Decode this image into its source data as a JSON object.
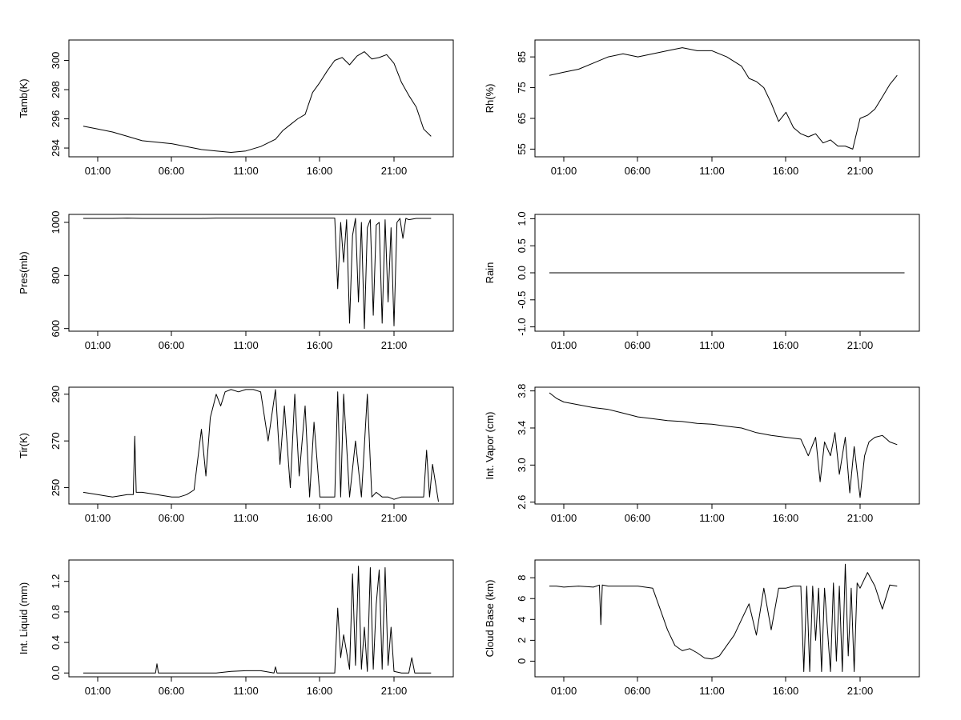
{
  "chart_data": [
    {
      "type": "line",
      "ylabel": "Tamb(K)",
      "x_ticks": [
        "01:00",
        "06:00",
        "11:00",
        "16:00",
        "21:00"
      ],
      "y_ticks": [
        "294",
        "296",
        "298",
        "300"
      ],
      "ylim": [
        293.4,
        301.4
      ],
      "series": [
        {
          "x": [
            0,
            1,
            2,
            3,
            4,
            5,
            6,
            7,
            8,
            9,
            10,
            11,
            12,
            13,
            13.5,
            14,
            14.5,
            15,
            15.5,
            16,
            16.5,
            17,
            17.5,
            18,
            18.5,
            19,
            19.5,
            20,
            20.5,
            21,
            21.5,
            22,
            22.5,
            23,
            23.5
          ],
          "y": [
            295.5,
            295.3,
            295.1,
            294.8,
            294.5,
            294.4,
            294.3,
            294.1,
            293.9,
            293.8,
            293.7,
            293.8,
            294.1,
            294.6,
            295.2,
            295.6,
            296.0,
            296.3,
            297.8,
            298.5,
            299.3,
            300.0,
            300.2,
            299.7,
            300.3,
            300.6,
            300.1,
            300.2,
            300.4,
            299.8,
            298.5,
            297.6,
            296.8,
            295.3,
            294.8
          ]
        }
      ]
    },
    {
      "type": "line",
      "ylabel": "Rh(%)",
      "x_ticks": [
        "01:00",
        "06:00",
        "11:00",
        "16:00",
        "21:00"
      ],
      "y_ticks": [
        "55",
        "65",
        "75",
        "85"
      ],
      "ylim": [
        52.5,
        90.5
      ],
      "series": [
        {
          "x": [
            0,
            1,
            2,
            3,
            4,
            5,
            6,
            7,
            8,
            9,
            10,
            11,
            12,
            13,
            13.5,
            14,
            14.5,
            15,
            15.5,
            16,
            16.5,
            17,
            17.5,
            18,
            18.5,
            19,
            19.5,
            20,
            20.5,
            21,
            21.5,
            22,
            22.5,
            23,
            23.5
          ],
          "y": [
            79,
            80,
            81,
            83,
            85,
            86,
            85,
            86,
            87,
            88,
            87,
            87,
            85,
            82,
            78,
            77,
            75,
            70,
            64,
            67,
            62,
            60,
            59,
            60,
            57,
            58,
            56,
            56,
            55,
            65,
            66,
            68,
            72,
            76,
            79
          ]
        }
      ]
    },
    {
      "type": "line",
      "ylabel": "Pres(mb)",
      "x_ticks": [
        "01:00",
        "06:00",
        "11:00",
        "16:00",
        "21:00"
      ],
      "y_ticks": [
        "600",
        "800",
        "1000"
      ],
      "ylim": [
        590,
        1030
      ],
      "series": [
        {
          "x": [
            0,
            1,
            2,
            3,
            4,
            5,
            6,
            7,
            8,
            9,
            10,
            11,
            12,
            13,
            14,
            15,
            16,
            17,
            17.2,
            17.4,
            17.6,
            17.8,
            18,
            18.2,
            18.4,
            18.6,
            18.8,
            19,
            19.2,
            19.4,
            19.6,
            19.8,
            20,
            20.2,
            20.4,
            20.6,
            20.8,
            21,
            21.2,
            21.4,
            21.6,
            21.8,
            22,
            22.5,
            23,
            23.5
          ],
          "y": [
            1015,
            1015,
            1015,
            1016,
            1015,
            1015,
            1015,
            1015,
            1015,
            1016,
            1016,
            1016,
            1016,
            1016,
            1016,
            1016,
            1016,
            1016,
            750,
            1000,
            850,
            1010,
            620,
            950,
            1015,
            700,
            1000,
            600,
            980,
            1010,
            650,
            990,
            1000,
            620,
            1010,
            700,
            980,
            610,
            1000,
            1015,
            940,
            1015,
            1010,
            1015,
            1015,
            1015
          ]
        }
      ]
    },
    {
      "type": "line",
      "ylabel": "Rain",
      "x_ticks": [
        "01:00",
        "06:00",
        "11:00",
        "16:00",
        "21:00"
      ],
      "y_ticks": [
        "-1.0",
        "-0.5",
        "0.0",
        "0.5",
        "1.0"
      ],
      "ylim": [
        -1.08,
        1.08
      ],
      "series": [
        {
          "x": [
            0,
            24
          ],
          "y": [
            0,
            0
          ]
        }
      ]
    },
    {
      "type": "line",
      "ylabel": "Tir(K)",
      "x_ticks": [
        "01:00",
        "06:00",
        "11:00",
        "16:00",
        "21:00"
      ],
      "y_ticks": [
        "250",
        "270",
        "290"
      ],
      "ylim": [
        243,
        293
      ],
      "series": [
        {
          "x": [
            0,
            1,
            2,
            3,
            3.4,
            3.5,
            3.6,
            4,
            5,
            6,
            6.5,
            7,
            7.5,
            8,
            8.3,
            8.6,
            9,
            9.3,
            9.6,
            10,
            10.5,
            11,
            11.5,
            12,
            12.5,
            13,
            13.3,
            13.6,
            14,
            14.3,
            14.6,
            15,
            15.3,
            15.6,
            16,
            16.5,
            17,
            17.2,
            17.4,
            17.6,
            18,
            18.4,
            18.8,
            19.2,
            19.5,
            19.8,
            20.2,
            20.6,
            21,
            21.5,
            22,
            22.5,
            23,
            23.2,
            23.4,
            23.6,
            24
          ],
          "y": [
            248,
            247,
            246,
            247,
            247,
            272,
            248,
            248,
            247,
            246,
            246,
            247,
            249,
            275,
            255,
            280,
            290,
            285,
            291,
            292,
            291,
            292,
            292,
            291,
            270,
            292,
            260,
            285,
            250,
            290,
            255,
            285,
            246,
            278,
            246,
            246,
            246,
            291,
            246,
            290,
            246,
            270,
            246,
            290,
            246,
            248,
            246,
            246,
            245,
            246,
            246,
            246,
            246,
            266,
            246,
            260,
            244
          ]
        }
      ]
    },
    {
      "type": "line",
      "ylabel": "Int. Vapor (cm)",
      "x_ticks": [
        "01:00",
        "06:00",
        "11:00",
        "16:00",
        "21:00"
      ],
      "y_ticks": [
        "2.6",
        "3.0",
        "3.4",
        "3.8"
      ],
      "ylim": [
        2.58,
        3.84
      ],
      "series": [
        {
          "x": [
            0,
            0.5,
            1,
            2,
            3,
            4,
            5,
            6,
            7,
            8,
            9,
            10,
            11,
            12,
            13,
            14,
            15,
            16,
            17,
            17.5,
            18,
            18.3,
            18.6,
            19,
            19.3,
            19.6,
            20,
            20.3,
            20.6,
            21,
            21.3,
            21.6,
            22,
            22.5,
            23,
            23.5
          ],
          "y": [
            3.78,
            3.72,
            3.68,
            3.65,
            3.62,
            3.6,
            3.56,
            3.52,
            3.5,
            3.48,
            3.47,
            3.45,
            3.44,
            3.42,
            3.4,
            3.35,
            3.32,
            3.3,
            3.28,
            3.1,
            3.3,
            2.82,
            3.25,
            3.1,
            3.35,
            2.9,
            3.3,
            2.7,
            3.2,
            2.65,
            3.1,
            3.25,
            3.3,
            3.32,
            3.25,
            3.22
          ]
        }
      ]
    },
    {
      "type": "line",
      "ylabel": "Int. Liquid (mm)",
      "x_ticks": [
        "01:00",
        "06:00",
        "11:00",
        "16:00",
        "21:00"
      ],
      "y_ticks": [
        "0.0",
        "0.4",
        "0.8",
        "1.2"
      ],
      "ylim": [
        -0.05,
        1.48
      ],
      "series": [
        {
          "x": [
            0,
            1,
            2,
            3,
            4,
            4.9,
            5,
            5.1,
            6,
            7,
            8,
            9,
            10,
            11,
            12,
            12.9,
            13,
            13.1,
            14,
            15,
            16,
            17,
            17.2,
            17.4,
            17.6,
            18,
            18.2,
            18.4,
            18.6,
            18.8,
            19,
            19.2,
            19.4,
            19.6,
            19.8,
            20,
            20.2,
            20.4,
            20.6,
            20.8,
            21,
            21.5,
            22,
            22.2,
            22.4,
            23,
            23.5
          ],
          "y": [
            0,
            0,
            0,
            0,
            0,
            0,
            0.12,
            0,
            0,
            0,
            0,
            0,
            0.02,
            0.03,
            0.03,
            0,
            0.08,
            0,
            0,
            0,
            0,
            0,
            0.85,
            0.2,
            0.5,
            0.05,
            1.3,
            0.1,
            1.4,
            0.05,
            0.6,
            0.02,
            1.38,
            0.05,
            0.9,
            1.35,
            0.05,
            1.38,
            0.1,
            0.6,
            0.02,
            0,
            0,
            0.2,
            0,
            0,
            0
          ]
        }
      ]
    },
    {
      "type": "line",
      "ylabel": "Cloud Base (km)",
      "x_ticks": [
        "01:00",
        "06:00",
        "11:00",
        "16:00",
        "21:00"
      ],
      "y_ticks": [
        "0",
        "2",
        "4",
        "6",
        "8"
      ],
      "ylim": [
        -1.5,
        9.7
      ],
      "series": [
        {
          "x": [
            0,
            0.5,
            1,
            2,
            3,
            3.4,
            3.5,
            3.6,
            4,
            5,
            6,
            7,
            7.5,
            8,
            8.5,
            9,
            9.5,
            10,
            10.5,
            11,
            11.5,
            12,
            12.5,
            13,
            13.5,
            14,
            14.5,
            15,
            15.5,
            16,
            16.5,
            17,
            17.2,
            17.4,
            17.6,
            17.8,
            18,
            18.2,
            18.4,
            18.6,
            18.8,
            19,
            19.2,
            19.4,
            19.6,
            19.8,
            20,
            20.2,
            20.4,
            20.6,
            20.8,
            21,
            21.5,
            22,
            22.5,
            23,
            23.5
          ],
          "y": [
            7.2,
            7.2,
            7.1,
            7.2,
            7.1,
            7.3,
            3.5,
            7.3,
            7.2,
            7.2,
            7.2,
            7.0,
            5.0,
            3.0,
            1.5,
            1.0,
            1.2,
            0.8,
            0.3,
            0.2,
            0.5,
            1.5,
            2.5,
            4.0,
            5.5,
            2.5,
            7.0,
            3.0,
            7.0,
            7.0,
            7.2,
            7.2,
            -1.0,
            7.2,
            -1.0,
            7.2,
            2.0,
            7.0,
            -1.0,
            7.0,
            3.0,
            -1.0,
            7.5,
            0.0,
            7.2,
            -1.0,
            9.3,
            0.5,
            7.0,
            -1.0,
            7.5,
            7.0,
            8.5,
            7.2,
            5.0,
            7.3,
            7.2
          ]
        }
      ]
    }
  ]
}
